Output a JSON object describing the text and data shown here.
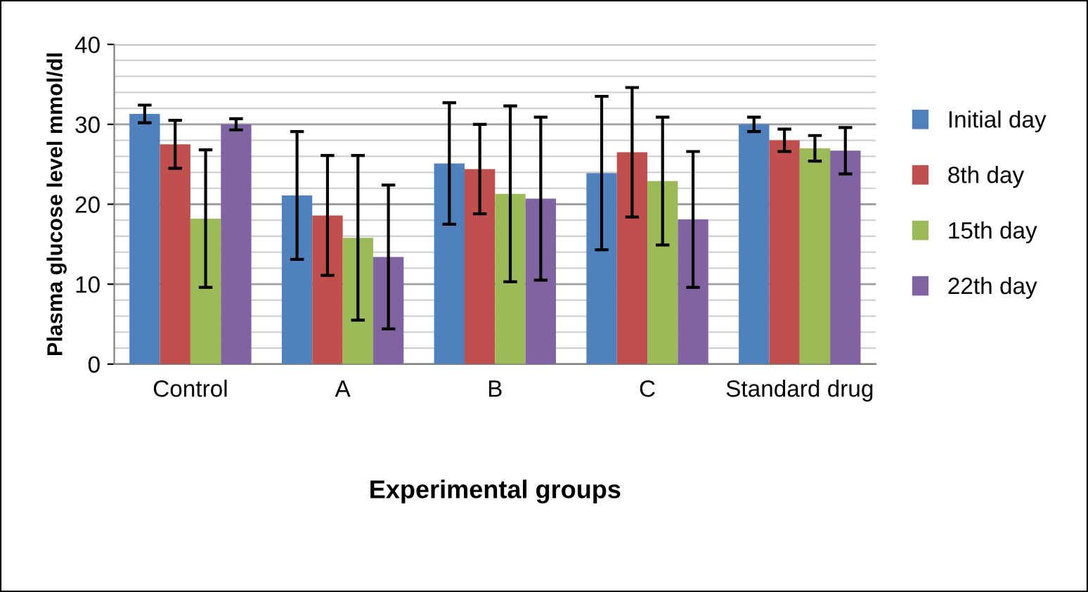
{
  "chart_data": {
    "type": "bar",
    "xlabel": "Experimental groups",
    "ylabel": "Plasma glucose level mmol/dl",
    "categories": [
      "Control",
      "A",
      "B",
      "C",
      "Standard drug"
    ],
    "series": [
      {
        "name": "Initial day",
        "color": "#4f81bd",
        "values": [
          31.3,
          21.1,
          25.1,
          23.9,
          30.0
        ],
        "errors": [
          1.1,
          8,
          7.6,
          9.6,
          0.9
        ]
      },
      {
        "name": "8th day",
        "color": "#c0504d",
        "values": [
          27.5,
          18.6,
          24.4,
          26.5,
          28.0
        ],
        "errors": [
          3,
          7.5,
          5.6,
          8.1,
          1.4
        ]
      },
      {
        "name": "15th day",
        "color": "#9bbb59",
        "values": [
          18.2,
          15.8,
          21.3,
          22.9,
          27.0
        ],
        "errors": [
          8.6,
          10.3,
          11,
          8,
          1.6
        ]
      },
      {
        "name": "22th day",
        "color": "#8064a2",
        "values": [
          30.0,
          13.4,
          20.7,
          18.1,
          26.7
        ],
        "errors": [
          0.7,
          9,
          10.2,
          8.5,
          2.9
        ]
      }
    ],
    "ylim": [
      0,
      40
    ],
    "yticks": [
      0,
      10,
      20,
      30,
      40
    ],
    "grid": "y",
    "legend": "right"
  }
}
